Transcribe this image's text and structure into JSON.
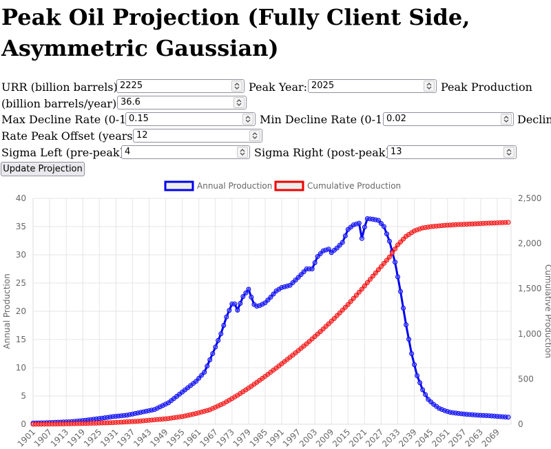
{
  "page": {
    "title": "Peak Oil Projection (Fully Client Side, Asymmetric Gaussian)"
  },
  "form": {
    "urr_label": "URR (billion barrels):",
    "urr_value": "2225",
    "peak_year_label": "Peak Year:",
    "peak_year_value": "2025",
    "peak_prod_label_1": "Peak Production",
    "peak_prod_label_2": "(billion barrels/year):",
    "peak_prod_value": "36.6",
    "max_decline_label": "Max Decline Rate (0-1):",
    "max_decline_value": "0.15",
    "min_decline_label": "Min Decline Rate (0-1):",
    "min_decline_value": "0.02",
    "decline_cut_label": "Declin",
    "rate_offset_label": "Rate Peak Offset (years):",
    "rate_offset_value": "12",
    "sigma_left_label": "Sigma Left (pre-peak):",
    "sigma_left_value": "4",
    "sigma_right_label": "Sigma Right (post-peak):",
    "sigma_right_value": "13",
    "update_button": "Update Projection"
  },
  "chart_data": {
    "type": "line",
    "xlabel": "",
    "y_left_label": "Annual Production",
    "y_right_label": "Cumulative Production",
    "y_left_range": [
      0,
      40
    ],
    "y_left_ticks": [
      "0",
      "5",
      "10",
      "15",
      "20",
      "25",
      "30",
      "35",
      "40"
    ],
    "y_right_range": [
      0,
      2500
    ],
    "y_right_ticks": [
      "0",
      "500",
      "1,000",
      "1,500",
      "2,000",
      "2,500"
    ],
    "x_range": [
      1901,
      2074
    ],
    "x_tick_labels": [
      "1901",
      "1907",
      "1913",
      "1919",
      "1925",
      "1931",
      "1937",
      "1943",
      "1949",
      "1955",
      "1961",
      "1967",
      "1973",
      "1979",
      "1985",
      "1991",
      "1997",
      "2003",
      "2009",
      "2015",
      "2021",
      "2027",
      "2033",
      "2039",
      "2045",
      "2051",
      "2057",
      "2063",
      "2069"
    ],
    "grid": true,
    "legend_position": "top",
    "series": [
      {
        "name": "Annual Production",
        "axis": "left",
        "color": "#0000ee",
        "points": [
          [
            1901,
            0.2
          ],
          [
            1905,
            0.25
          ],
          [
            1910,
            0.35
          ],
          [
            1915,
            0.45
          ],
          [
            1920,
            0.7
          ],
          [
            1925,
            1.0
          ],
          [
            1930,
            1.35
          ],
          [
            1935,
            1.6
          ],
          [
            1940,
            2.1
          ],
          [
            1945,
            2.6
          ],
          [
            1950,
            3.8
          ],
          [
            1955,
            5.7
          ],
          [
            1960,
            7.6
          ],
          [
            1963,
            9.2
          ],
          [
            1966,
            12.5
          ],
          [
            1969,
            16.0
          ],
          [
            1971,
            19.0
          ],
          [
            1973,
            21.3
          ],
          [
            1974,
            21.3
          ],
          [
            1975,
            20.2
          ],
          [
            1977,
            22.6
          ],
          [
            1979,
            23.9
          ],
          [
            1980,
            22.5
          ],
          [
            1981,
            21.2
          ],
          [
            1982,
            20.9
          ],
          [
            1983,
            21.0
          ],
          [
            1985,
            21.5
          ],
          [
            1987,
            22.5
          ],
          [
            1989,
            23.6
          ],
          [
            1991,
            24.2
          ],
          [
            1994,
            24.6
          ],
          [
            1997,
            26.0
          ],
          [
            2000,
            27.5
          ],
          [
            2002,
            27.5
          ],
          [
            2004,
            29.7
          ],
          [
            2006,
            30.7
          ],
          [
            2008,
            31.0
          ],
          [
            2009,
            30.4
          ],
          [
            2011,
            31.2
          ],
          [
            2013,
            32.2
          ],
          [
            2015,
            34.5
          ],
          [
            2017,
            35.3
          ],
          [
            2019,
            35.6
          ],
          [
            2020,
            32.9
          ],
          [
            2021,
            34.9
          ],
          [
            2022,
            36.4
          ],
          [
            2024,
            36.3
          ],
          [
            2026,
            36.1
          ],
          [
            2028,
            35.0
          ],
          [
            2030,
            32.4
          ],
          [
            2032,
            28.7
          ],
          [
            2034,
            23.5
          ],
          [
            2036,
            17.6
          ],
          [
            2038,
            12.5
          ],
          [
            2040,
            8.6
          ],
          [
            2042,
            6.1
          ],
          [
            2044,
            4.4
          ],
          [
            2046,
            3.5
          ],
          [
            2048,
            2.8
          ],
          [
            2050,
            2.4
          ],
          [
            2052,
            2.1
          ],
          [
            2055,
            1.9
          ],
          [
            2058,
            1.75
          ],
          [
            2062,
            1.6
          ],
          [
            2066,
            1.5
          ],
          [
            2070,
            1.35
          ],
          [
            2073,
            1.25
          ]
        ]
      },
      {
        "name": "Cumulative Production",
        "axis": "right",
        "color": "#ee0000",
        "points": [
          [
            1901,
            0
          ],
          [
            1910,
            3
          ],
          [
            1920,
            8
          ],
          [
            1930,
            18
          ],
          [
            1940,
            35
          ],
          [
            1950,
            63
          ],
          [
            1955,
            85
          ],
          [
            1960,
            118
          ],
          [
            1965,
            160
          ],
          [
            1970,
            230
          ],
          [
            1975,
            320
          ],
          [
            1980,
            420
          ],
          [
            1985,
            530
          ],
          [
            1990,
            645
          ],
          [
            1995,
            765
          ],
          [
            2000,
            890
          ],
          [
            2005,
            1025
          ],
          [
            2010,
            1170
          ],
          [
            2015,
            1325
          ],
          [
            2020,
            1495
          ],
          [
            2025,
            1675
          ],
          [
            2030,
            1850
          ],
          [
            2033,
            1985
          ],
          [
            2036,
            2080
          ],
          [
            2039,
            2140
          ],
          [
            2042,
            2172
          ],
          [
            2045,
            2187
          ],
          [
            2050,
            2201
          ],
          [
            2055,
            2210
          ],
          [
            2060,
            2217
          ],
          [
            2065,
            2224
          ],
          [
            2070,
            2230
          ],
          [
            2073,
            2234
          ]
        ]
      }
    ]
  }
}
